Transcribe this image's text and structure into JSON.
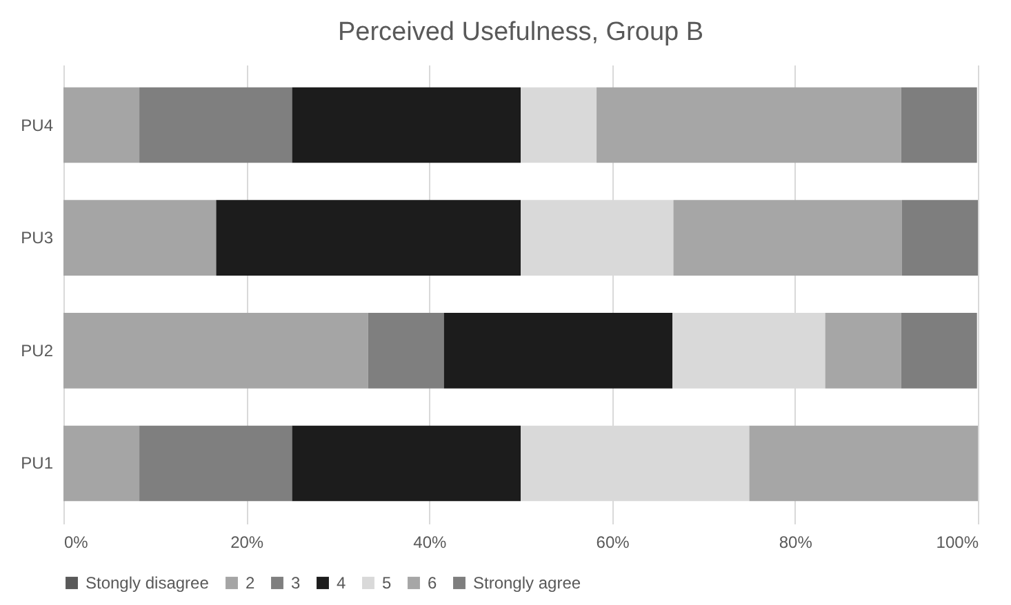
{
  "chart_data": {
    "type": "bar",
    "title": "Perceived Usefulness, Group B",
    "orientation": "horizontal",
    "stacked": true,
    "categories": [
      "PU4",
      "PU3",
      "PU2",
      "PU1"
    ],
    "series": [
      {
        "name": "Stongly disagree",
        "color": "#595959",
        "values": [
          0,
          0,
          0,
          0
        ]
      },
      {
        "name": "2",
        "color": "#a5a5a5",
        "values": [
          8.3,
          16.7,
          33.3,
          8.3
        ]
      },
      {
        "name": "3",
        "color": "#7f7f7f",
        "values": [
          16.7,
          0,
          8.3,
          16.7
        ]
      },
      {
        "name": "4",
        "color": "#1c1c1c",
        "values": [
          25,
          33.3,
          25,
          25
        ]
      },
      {
        "name": "5",
        "color": "#d9d9d9",
        "values": [
          8.3,
          16.7,
          16.7,
          25
        ]
      },
      {
        "name": "6",
        "color": "#a6a6a6",
        "values": [
          33.3,
          25,
          8.3,
          25
        ]
      },
      {
        "name": "Strongly agree",
        "color": "#7e7e7e",
        "values": [
          8.3,
          8.3,
          8.3,
          0
        ]
      }
    ],
    "xlim": [
      0,
      100
    ],
    "xticks": [
      {
        "value": 0,
        "label": "0%"
      },
      {
        "value": 20,
        "label": "20%"
      },
      {
        "value": 40,
        "label": "40%"
      },
      {
        "value": 60,
        "label": "60%"
      },
      {
        "value": 80,
        "label": "80%"
      },
      {
        "value": 100,
        "label": "100%"
      }
    ],
    "grid": true,
    "legend": "bottom"
  }
}
